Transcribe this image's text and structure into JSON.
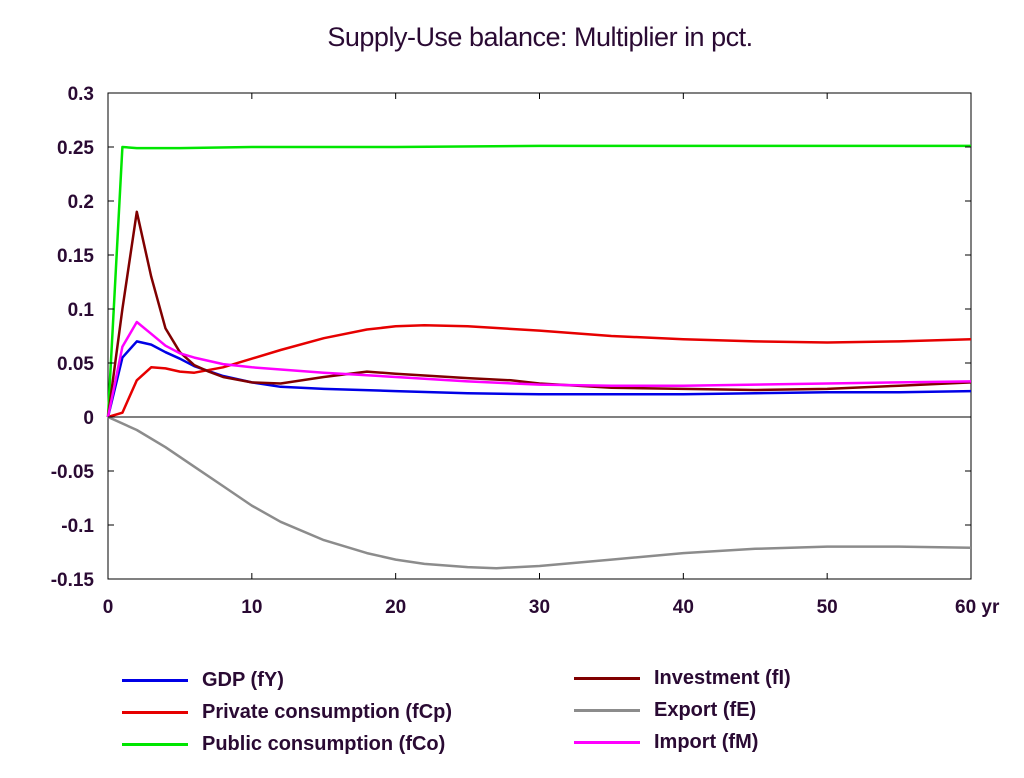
{
  "chart_data": {
    "type": "line",
    "title": "Supply-Use balance: Multiplier in pct.",
    "xlim": [
      0,
      60
    ],
    "ylim": [
      -0.15,
      0.3
    ],
    "xticks": [
      0,
      10,
      20,
      30,
      40,
      50,
      60
    ],
    "xtick_labels": [
      "0",
      "10",
      "20",
      "30",
      "40",
      "50",
      "60 yr"
    ],
    "yticks": [
      0.3,
      0.25,
      0.2,
      0.15,
      0.1,
      0.05,
      0,
      -0.05,
      -0.1,
      -0.15
    ],
    "ytick_labels": [
      "0.3",
      "0.25",
      "0.2",
      "0.15",
      "0.1",
      "0.05",
      "0",
      "-0.05",
      "-0.1",
      "-0.15"
    ],
    "grid": false,
    "legend_position": "bottom",
    "series": [
      {
        "name": "GDP (fY)",
        "color": "#0000e6",
        "x": [
          0,
          1,
          2,
          3,
          4,
          5,
          6,
          8,
          10,
          12,
          15,
          20,
          25,
          30,
          35,
          40,
          45,
          50,
          55,
          60
        ],
        "y": [
          0,
          0.055,
          0.07,
          0.067,
          0.06,
          0.054,
          0.047,
          0.038,
          0.032,
          0.028,
          0.026,
          0.024,
          0.022,
          0.021,
          0.021,
          0.021,
          0.022,
          0.023,
          0.023,
          0.024
        ]
      },
      {
        "name": "Private consumption (fCp)",
        "color": "#e60000",
        "x": [
          0,
          1,
          2,
          3,
          4,
          5,
          6,
          8,
          10,
          12,
          15,
          18,
          20,
          22,
          25,
          30,
          35,
          40,
          45,
          50,
          55,
          60
        ],
        "y": [
          0,
          0.004,
          0.034,
          0.046,
          0.045,
          0.042,
          0.041,
          0.046,
          0.054,
          0.062,
          0.073,
          0.081,
          0.084,
          0.085,
          0.084,
          0.08,
          0.075,
          0.072,
          0.07,
          0.069,
          0.07,
          0.072
        ]
      },
      {
        "name": "Public consumption (fCo)",
        "color": "#00e600",
        "x": [
          0,
          1,
          2,
          3,
          5,
          10,
          20,
          30,
          40,
          50,
          60
        ],
        "y": [
          0,
          0.25,
          0.249,
          0.249,
          0.249,
          0.25,
          0.25,
          0.251,
          0.251,
          0.251,
          0.251
        ]
      },
      {
        "name": "Investment (fI)",
        "color": "#800000",
        "x": [
          0,
          1,
          2,
          3,
          4,
          5,
          6,
          7,
          8,
          10,
          12,
          15,
          18,
          20,
          25,
          28,
          30,
          35,
          40,
          45,
          50,
          55,
          60
        ],
        "y": [
          0,
          0.1,
          0.19,
          0.13,
          0.082,
          0.06,
          0.048,
          0.042,
          0.037,
          0.032,
          0.031,
          0.037,
          0.042,
          0.04,
          0.036,
          0.034,
          0.031,
          0.027,
          0.026,
          0.025,
          0.026,
          0.029,
          0.032
        ]
      },
      {
        "name": "Export (fE)",
        "color": "#8c8c8c",
        "x": [
          0,
          2,
          4,
          6,
          8,
          10,
          12,
          15,
          18,
          20,
          22,
          25,
          27,
          30,
          35,
          40,
          45,
          50,
          55,
          60
        ],
        "y": [
          0,
          -0.012,
          -0.028,
          -0.046,
          -0.064,
          -0.082,
          -0.097,
          -0.114,
          -0.126,
          -0.132,
          -0.136,
          -0.139,
          -0.14,
          -0.138,
          -0.132,
          -0.126,
          -0.122,
          -0.12,
          -0.12,
          -0.121
        ]
      },
      {
        "name": "Import (fM)",
        "color": "#ff00ff",
        "x": [
          0,
          1,
          2,
          3,
          4,
          5,
          6,
          8,
          10,
          12,
          15,
          20,
          25,
          30,
          35,
          40,
          45,
          50,
          55,
          60
        ],
        "y": [
          0,
          0.065,
          0.088,
          0.077,
          0.066,
          0.059,
          0.055,
          0.049,
          0.046,
          0.044,
          0.041,
          0.037,
          0.033,
          0.03,
          0.029,
          0.029,
          0.03,
          0.031,
          0.032,
          0.033
        ]
      }
    ]
  },
  "legend": {
    "items": [
      {
        "label": "GDP (fY)",
        "color": "#0000e6"
      },
      {
        "label": "Private consumption (fCp)",
        "color": "#e60000"
      },
      {
        "label": "Public consumption (fCo)",
        "color": "#00e600"
      },
      {
        "label": "Investment (fI)",
        "color": "#800000"
      },
      {
        "label": "Export (fE)",
        "color": "#8c8c8c"
      },
      {
        "label": "Import (fM)",
        "color": "#ff00ff"
      }
    ]
  }
}
